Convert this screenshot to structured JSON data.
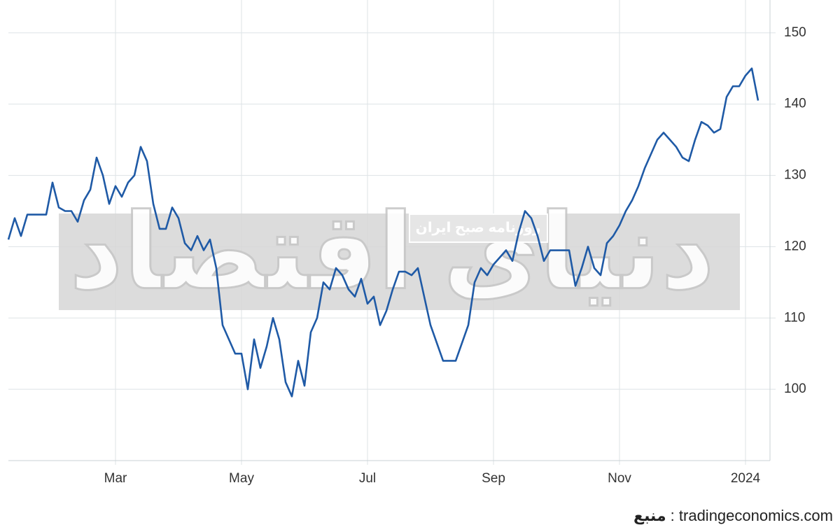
{
  "chart_data": {
    "type": "line",
    "categories": [
      null,
      null,
      null,
      null,
      null,
      null,
      null,
      null,
      null,
      null,
      null,
      null,
      null,
      null,
      null,
      null,
      null,
      "Mar",
      null,
      null,
      null,
      null,
      null,
      null,
      null,
      null,
      null,
      null,
      null,
      null,
      null,
      null,
      null,
      null,
      null,
      null,
      null,
      "May",
      null,
      null,
      null,
      null,
      null,
      null,
      null,
      null,
      null,
      null,
      null,
      null,
      null,
      null,
      null,
      null,
      null,
      null,
      null,
      "Jul",
      null,
      null,
      null,
      null,
      null,
      null,
      null,
      null,
      null,
      null,
      null,
      null,
      null,
      null,
      null,
      null,
      null,
      null,
      null,
      "Sep",
      null,
      null,
      null,
      null,
      null,
      null,
      null,
      null,
      null,
      null,
      null,
      null,
      null,
      null,
      null,
      null,
      null,
      null,
      null,
      "Nov",
      null,
      null,
      null,
      null,
      null,
      null,
      null,
      null,
      null,
      null,
      null,
      null,
      null,
      null,
      null,
      null,
      null,
      null,
      null,
      "2024",
      null,
      null
    ],
    "values": [
      121,
      124,
      121.5,
      124.5,
      124.5,
      124.5,
      124.5,
      129,
      125.5,
      125,
      125,
      123.5,
      126.5,
      128,
      132.5,
      130,
      126,
      128.5,
      127,
      129,
      130,
      134,
      132,
      126,
      122.5,
      122.5,
      125.5,
      124,
      120.5,
      119.5,
      121.5,
      119.5,
      121,
      117,
      109,
      107,
      105,
      105,
      100,
      107,
      103,
      106,
      110,
      107,
      101,
      99,
      104,
      100.5,
      108,
      110,
      115,
      114,
      117,
      116,
      114,
      113,
      115.5,
      112,
      113,
      109,
      111,
      114,
      116.5,
      116.5,
      116,
      117,
      113,
      109,
      106.5,
      104,
      104,
      104,
      106.5,
      109,
      115,
      117,
      116,
      117.5,
      118.5,
      119.5,
      118,
      122,
      125,
      124,
      121.5,
      118,
      119.5,
      119.5,
      119.5,
      119.5,
      114.5,
      117,
      120,
      117,
      116,
      120.5,
      121.5,
      123,
      125,
      126.5,
      128.5,
      131,
      133,
      135,
      136,
      135,
      134,
      132.5,
      132,
      135,
      137.5,
      137,
      136,
      136.5,
      141,
      142.5,
      142.5,
      144,
      145,
      140.5
    ],
    "color": "#1f5aa6",
    "ylim": [
      90,
      154.6
    ],
    "yticks": [
      100,
      110,
      120,
      130,
      140,
      150
    ],
    "grid": true,
    "watermark": {
      "title": "دنیای اقتصاد",
      "subtitle": "روزنامه صبح ایران"
    },
    "source_label": "منبع",
    "source": ": tradingeconomics.com"
  }
}
